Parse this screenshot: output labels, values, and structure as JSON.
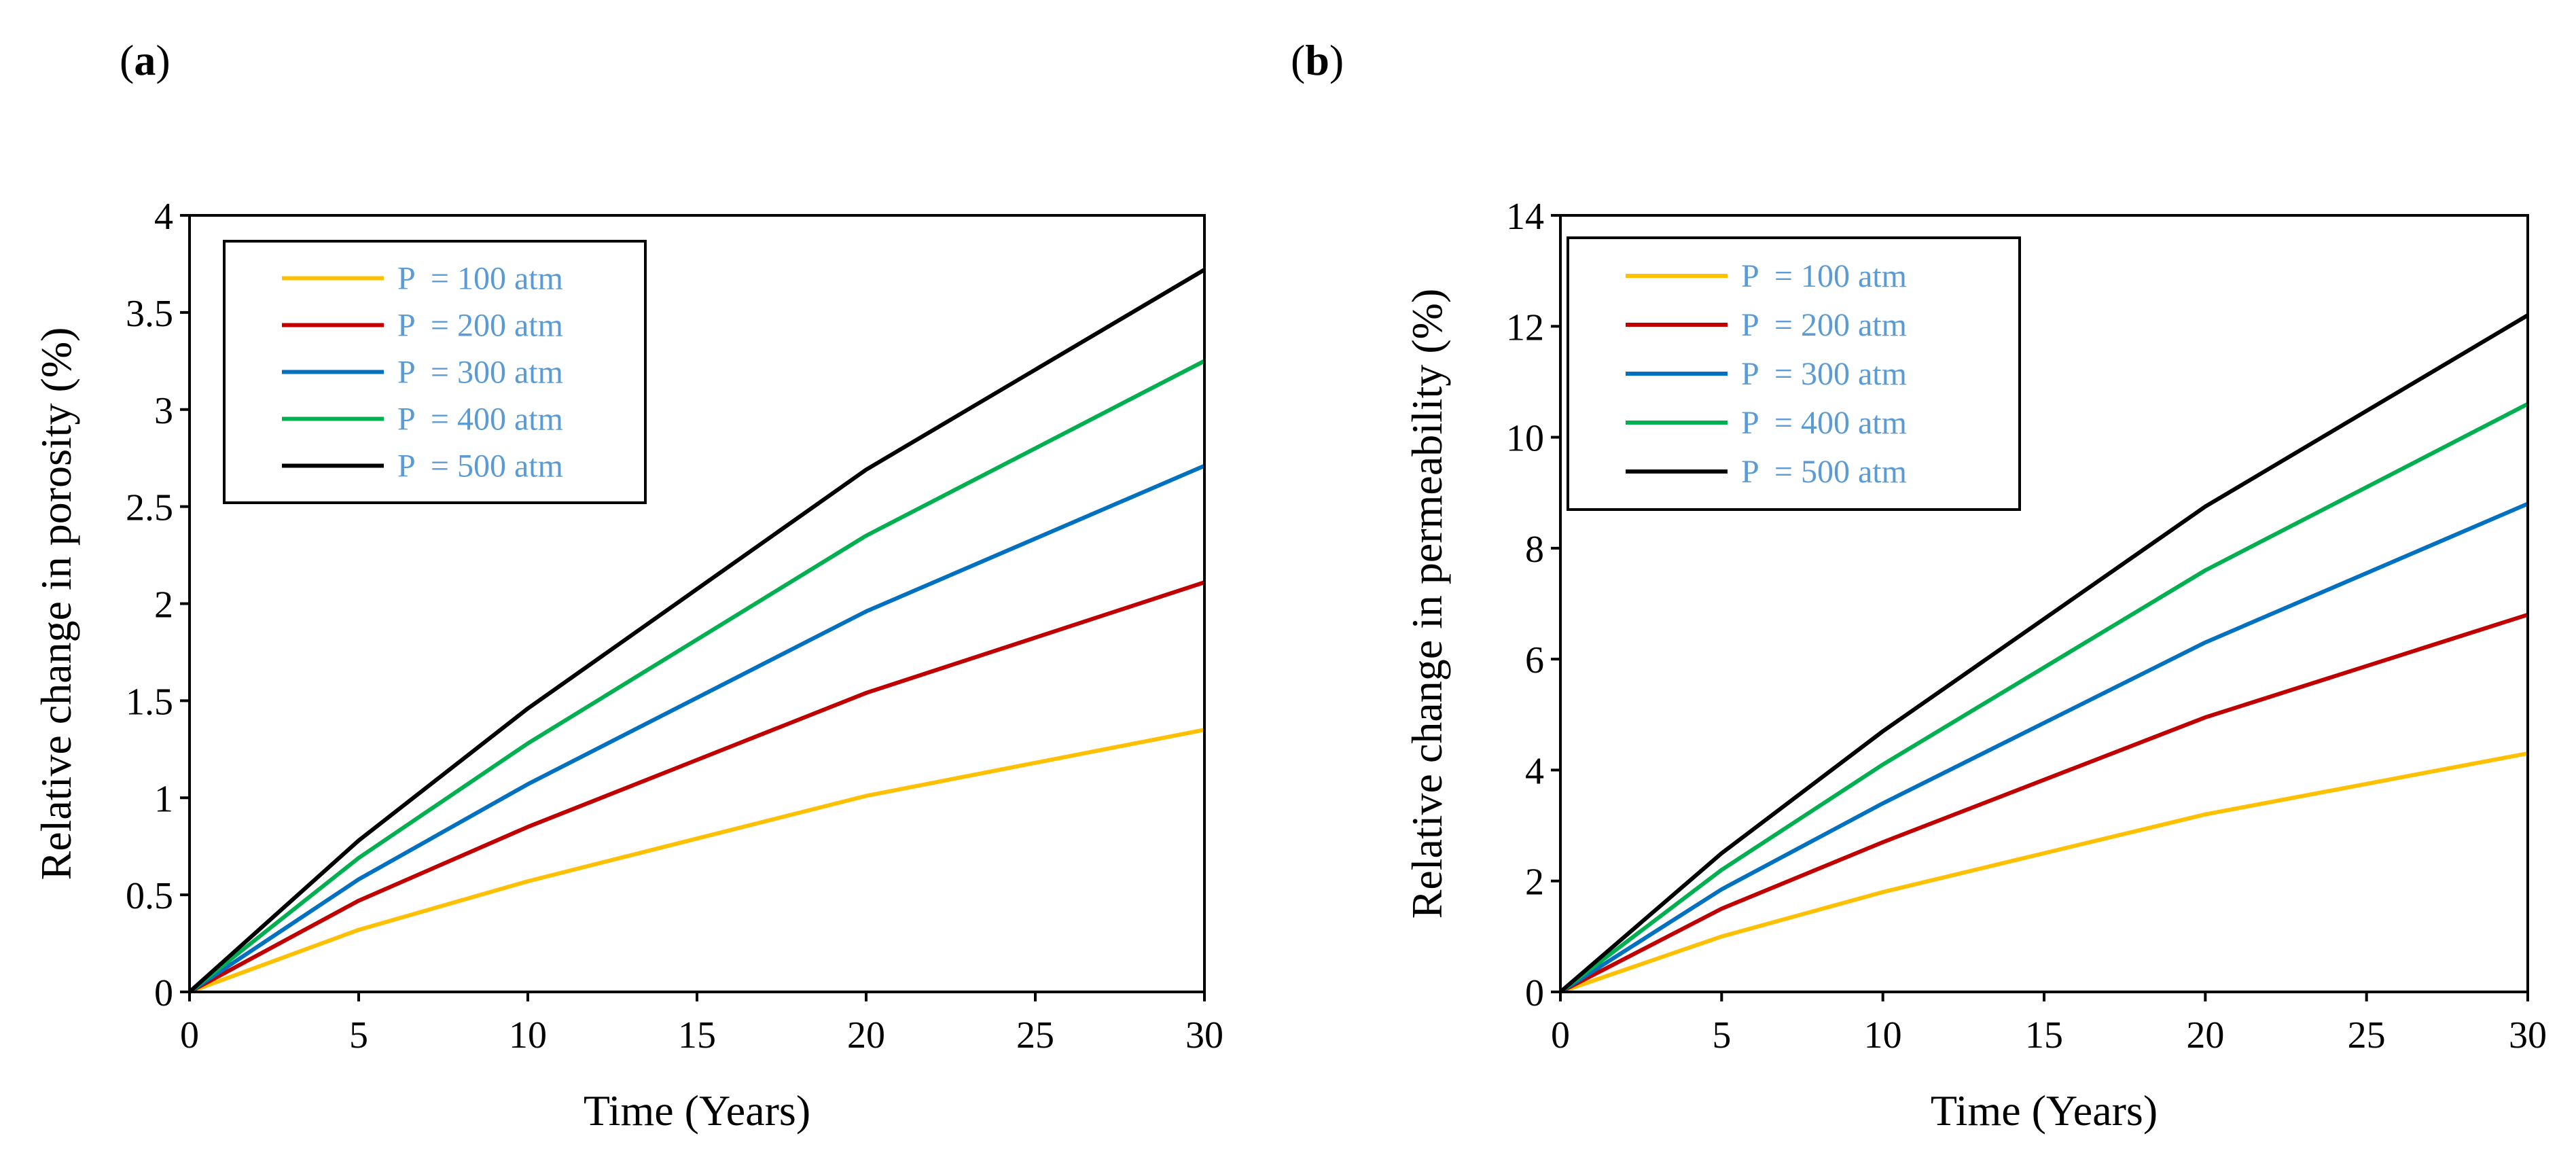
{
  "chart_data": [
    {
      "type": "line",
      "panel_label": "a",
      "title": "",
      "xlabel": "Time (Years)",
      "ylabel": "Relative change in porosity (%)",
      "xlim": [
        0,
        30
      ],
      "ylim": [
        0,
        4
      ],
      "x_ticks": [
        0,
        5,
        10,
        15,
        20,
        25,
        30
      ],
      "y_ticks": [
        0,
        0.5,
        1,
        1.5,
        2,
        2.5,
        3,
        3.5,
        4
      ],
      "x_tick_labels": [
        "0",
        "5",
        "10",
        "15",
        "20",
        "25",
        "30"
      ],
      "y_tick_labels": [
        "0",
        "0.5",
        "1",
        "1.5",
        "2",
        "2.5",
        "3",
        "3.5",
        "4"
      ],
      "grid": false,
      "legend_position": "top-left",
      "x": [
        0,
        5,
        10,
        20,
        30
      ],
      "series": [
        {
          "name": "P  = 100 atm",
          "color": "#FFC000",
          "values": [
            0,
            0.32,
            0.57,
            1.01,
            1.35
          ]
        },
        {
          "name": "P  = 200 atm",
          "color": "#C00000",
          "values": [
            0,
            0.47,
            0.85,
            1.54,
            2.11
          ]
        },
        {
          "name": "P  = 300 atm",
          "color": "#0070C0",
          "values": [
            0,
            0.58,
            1.07,
            1.96,
            2.71
          ]
        },
        {
          "name": "P  = 400 atm",
          "color": "#00B050",
          "values": [
            0,
            0.69,
            1.28,
            2.35,
            3.25
          ]
        },
        {
          "name": "P  = 500 atm",
          "color": "#000000",
          "values": [
            0,
            0.78,
            1.46,
            2.69,
            3.72
          ]
        }
      ]
    },
    {
      "type": "line",
      "panel_label": "b",
      "title": "",
      "xlabel": "Time (Years)",
      "ylabel": "Relative change in permeability (%)",
      "xlim": [
        0,
        30
      ],
      "ylim": [
        0,
        14
      ],
      "x_ticks": [
        0,
        5,
        10,
        15,
        20,
        25,
        30
      ],
      "y_ticks": [
        0,
        2,
        4,
        6,
        8,
        10,
        12,
        14
      ],
      "x_tick_labels": [
        "0",
        "5",
        "10",
        "15",
        "20",
        "25",
        "30"
      ],
      "y_tick_labels": [
        "0",
        "2",
        "4",
        "6",
        "8",
        "10",
        "12",
        "14"
      ],
      "grid": false,
      "legend_position": "top-left",
      "x": [
        0,
        5,
        10,
        20,
        30
      ],
      "series": [
        {
          "name": "P  = 100 atm",
          "color": "#FFC000",
          "values": [
            0,
            1.0,
            1.8,
            3.2,
            4.3
          ]
        },
        {
          "name": "P  = 200 atm",
          "color": "#C00000",
          "values": [
            0,
            1.5,
            2.7,
            4.95,
            6.8
          ]
        },
        {
          "name": "P  = 300 atm",
          "color": "#0070C0",
          "values": [
            0,
            1.85,
            3.4,
            6.3,
            8.8
          ]
        },
        {
          "name": "P  = 400 atm",
          "color": "#00B050",
          "values": [
            0,
            2.2,
            4.1,
            7.6,
            10.6
          ]
        },
        {
          "name": "P  = 500 atm",
          "color": "#000000",
          "values": [
            0,
            2.5,
            4.7,
            8.75,
            12.2
          ]
        }
      ]
    }
  ],
  "legend_text_color": "#5B9BD5"
}
